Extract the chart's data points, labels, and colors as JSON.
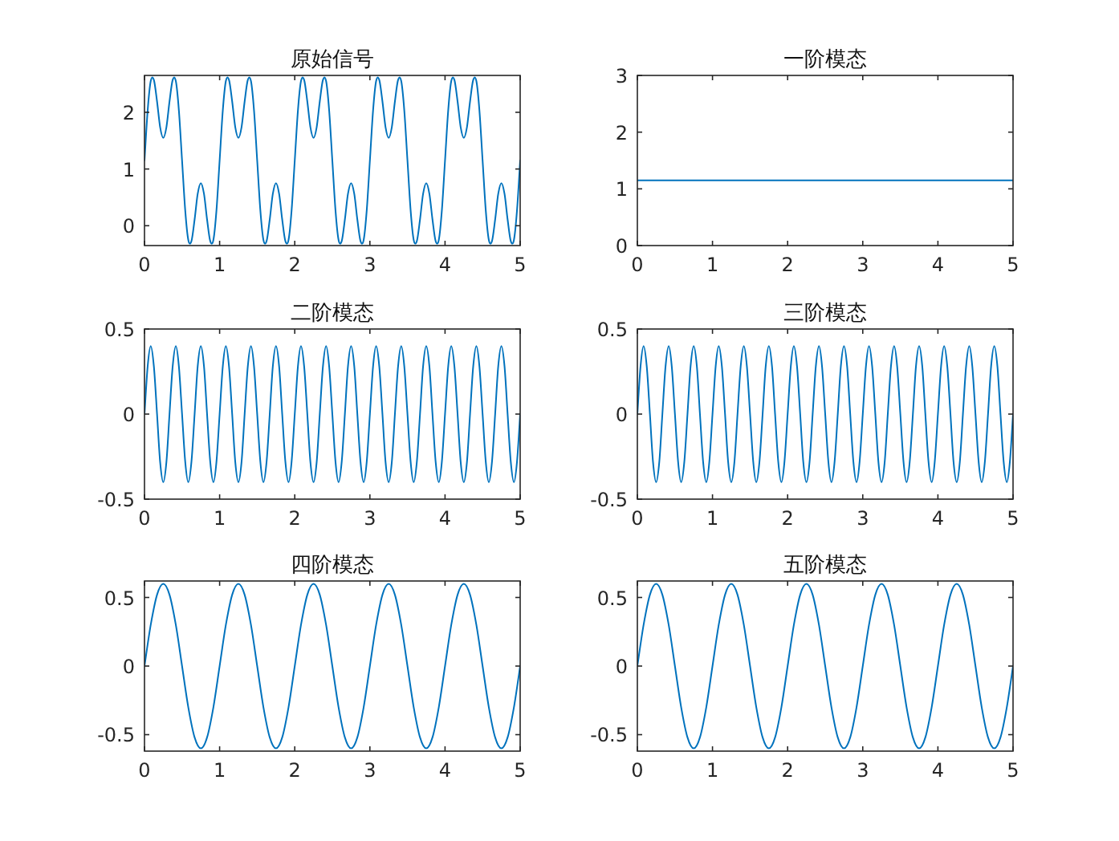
{
  "chart_data": [
    {
      "type": "line",
      "title": "原始信号",
      "color": "#0072bd",
      "xlim": [
        0,
        5
      ],
      "ylim": [
        -0.35,
        2.65
      ],
      "xticks": [
        0,
        1,
        2,
        3,
        4,
        5
      ],
      "yticks": [
        0,
        1,
        2
      ],
      "x": [
        0,
        0.042,
        0.083,
        0.125,
        0.167,
        0.208,
        0.25,
        0.292,
        0.333,
        0.375,
        0.417,
        0.458,
        0.5,
        0.542,
        0.583,
        0.625,
        0.667,
        0.708,
        0.75,
        0.792,
        0.833,
        0.875,
        0.917,
        0.958,
        1,
        1.042,
        1.083,
        1.125,
        1.167,
        1.208,
        1.25,
        1.292,
        1.333,
        1.375,
        1.417,
        1.458,
        1.5,
        1.542,
        1.583,
        1.625,
        1.667,
        1.708,
        1.75,
        1.792,
        1.833,
        1.875,
        1.917,
        1.958,
        2,
        2.042,
        2.083,
        2.125,
        2.167,
        2.208,
        2.25,
        2.292,
        2.333,
        2.375,
        2.417,
        2.458,
        2.5,
        2.542,
        2.583,
        2.625,
        2.667,
        2.708,
        2.75,
        2.792,
        2.833,
        2.875,
        2.917,
        2.958,
        3,
        3.042,
        3.083,
        3.125,
        3.167,
        3.208,
        3.25,
        3.292,
        3.333,
        3.375,
        3.417,
        3.458,
        3.5,
        3.542,
        3.583,
        3.625,
        3.667,
        3.708,
        3.75,
        3.792,
        3.833,
        3.875,
        3.917,
        3.958,
        4,
        4.042,
        4.083,
        4.125,
        4.167,
        4.208,
        4.25,
        4.292,
        4.333,
        4.375,
        4.417,
        4.458,
        4.5,
        4.542,
        4.583,
        4.625,
        4.667,
        4.708,
        4.75,
        4.792,
        4.833,
        4.875,
        4.917,
        4.958,
        5
      ],
      "values": [
        1.15,
        2.03,
        2.55,
        2.57,
        2.19,
        1.74,
        1.55,
        1.74,
        2.19,
        2.57,
        2.55,
        2.03,
        1.15,
        0.27,
        -0.25,
        -0.27,
        0.11,
        0.56,
        0.75,
        0.56,
        0.11,
        -0.27,
        -0.25,
        0.27,
        1.15,
        2.03,
        2.55,
        2.57,
        2.19,
        1.74,
        1.55,
        1.74,
        2.19,
        2.57,
        2.55,
        2.03,
        1.15,
        0.27,
        -0.25,
        -0.27,
        0.11,
        0.56,
        0.75,
        0.56,
        0.11,
        -0.27,
        -0.25,
        0.27,
        1.15,
        2.03,
        2.55,
        2.57,
        2.19,
        1.74,
        1.55,
        1.74,
        2.19,
        2.57,
        2.55,
        2.03,
        1.15,
        0.27,
        -0.25,
        -0.27,
        0.11,
        0.56,
        0.75,
        0.56,
        0.11,
        -0.27,
        -0.25,
        0.27,
        1.15,
        2.03,
        2.55,
        2.57,
        2.19,
        1.74,
        1.55,
        1.74,
        2.19,
        2.57,
        2.55,
        2.03,
        1.15,
        0.27,
        -0.25,
        -0.27,
        0.11,
        0.56,
        0.75,
        0.56,
        0.11,
        -0.27,
        -0.25,
        0.27,
        1.15,
        2.03,
        2.55,
        2.57,
        2.19,
        1.74,
        1.55,
        1.74,
        2.19,
        2.57,
        2.55,
        2.03,
        1.15,
        0.27,
        -0.25,
        -0.27,
        0.11,
        0.56,
        0.75,
        0.56,
        0.11,
        -0.27,
        -0.25,
        0.27,
        1.15
      ]
    },
    {
      "type": "line",
      "title": "一阶模态",
      "color": "#0072bd",
      "xlim": [
        0,
        5
      ],
      "ylim": [
        0,
        3
      ],
      "xticks": [
        0,
        1,
        2,
        3,
        4,
        5
      ],
      "yticks": [
        0,
        1,
        2,
        3
      ],
      "x": [
        0,
        5
      ],
      "values": [
        1.15,
        1.15
      ]
    },
    {
      "type": "line",
      "title": "二阶模态",
      "color": "#0072bd",
      "xlim": [
        0,
        5
      ],
      "ylim": [
        -0.5,
        0.5
      ],
      "xticks": [
        0,
        1,
        2,
        3,
        4,
        5
      ],
      "yticks": [
        -0.5,
        0,
        0.5
      ],
      "x": [
        0,
        0.042,
        0.083,
        0.125,
        0.167,
        0.208,
        0.25,
        0.292,
        0.333,
        0.375,
        0.417,
        0.458,
        0.5,
        0.542,
        0.583,
        0.625,
        0.667,
        0.708,
        0.75,
        0.792,
        0.833,
        0.875,
        0.917,
        0.958,
        1,
        1.042,
        1.083,
        1.125,
        1.167,
        1.208,
        1.25,
        1.292,
        1.333,
        1.375,
        1.417,
        1.458,
        1.5,
        1.542,
        1.583,
        1.625,
        1.667,
        1.708,
        1.75,
        1.792,
        1.833,
        1.875,
        1.917,
        1.958,
        2,
        2.042,
        2.083,
        2.125,
        2.167,
        2.208,
        2.25,
        2.292,
        2.333,
        2.375,
        2.417,
        2.458,
        2.5,
        2.542,
        2.583,
        2.625,
        2.667,
        2.708,
        2.75,
        2.792,
        2.833,
        2.875,
        2.917,
        2.958,
        3,
        3.042,
        3.083,
        3.125,
        3.167,
        3.208,
        3.25,
        3.292,
        3.333,
        3.375,
        3.417,
        3.458,
        3.5,
        3.542,
        3.583,
        3.625,
        3.667,
        3.708,
        3.75,
        3.792,
        3.833,
        3.875,
        3.917,
        3.958,
        4,
        4.042,
        4.083,
        4.125,
        4.167,
        4.208,
        4.25,
        4.292,
        4.333,
        4.375,
        4.417,
        4.458,
        4.5,
        4.542,
        4.583,
        4.625,
        4.667,
        4.708,
        4.75,
        4.792,
        4.833,
        4.875,
        4.917,
        4.958,
        5
      ],
      "values": [
        0,
        0.28,
        0.4,
        0.28,
        0,
        -0.28,
        -0.4,
        -0.28,
        0,
        0.28,
        0.4,
        0.28,
        0,
        -0.28,
        -0.4,
        -0.28,
        0,
        0.28,
        0.4,
        0.28,
        0,
        -0.28,
        -0.4,
        -0.28,
        0,
        0.28,
        0.4,
        0.28,
        0,
        -0.28,
        -0.4,
        -0.28,
        0,
        0.28,
        0.4,
        0.28,
        0,
        -0.28,
        -0.4,
        -0.28,
        0,
        0.28,
        0.4,
        0.28,
        0,
        -0.28,
        -0.4,
        -0.28,
        0,
        0.28,
        0.4,
        0.28,
        0,
        -0.28,
        -0.4,
        -0.28,
        0,
        0.28,
        0.4,
        0.28,
        0,
        -0.28,
        -0.4,
        -0.28,
        0,
        0.28,
        0.4,
        0.28,
        0,
        -0.28,
        -0.4,
        -0.28,
        0,
        0.28,
        0.4,
        0.28,
        0,
        -0.28,
        -0.4,
        -0.28,
        0,
        0.28,
        0.4,
        0.28,
        0,
        -0.28,
        -0.4,
        -0.28,
        0,
        0.28,
        0.4,
        0.28,
        0,
        -0.28,
        -0.4,
        -0.28,
        0,
        0.28,
        0.4,
        0.28,
        0,
        -0.28,
        -0.4,
        -0.28,
        0,
        0.28,
        0.4,
        0.28,
        0,
        -0.28,
        -0.4,
        -0.28,
        0,
        0.28,
        0.4,
        0.28,
        0,
        -0.28,
        -0.4,
        -0.28,
        0
      ]
    },
    {
      "type": "line",
      "title": "三阶模态",
      "color": "#0072bd",
      "xlim": [
        0,
        5
      ],
      "ylim": [
        -0.5,
        0.5
      ],
      "xticks": [
        0,
        1,
        2,
        3,
        4,
        5
      ],
      "yticks": [
        -0.5,
        0,
        0.5
      ],
      "x": [
        0,
        0.042,
        0.083,
        0.125,
        0.167,
        0.208,
        0.25,
        0.292,
        0.333,
        0.375,
        0.417,
        0.458,
        0.5,
        0.542,
        0.583,
        0.625,
        0.667,
        0.708,
        0.75,
        0.792,
        0.833,
        0.875,
        0.917,
        0.958,
        1,
        1.042,
        1.083,
        1.125,
        1.167,
        1.208,
        1.25,
        1.292,
        1.333,
        1.375,
        1.417,
        1.458,
        1.5,
        1.542,
        1.583,
        1.625,
        1.667,
        1.708,
        1.75,
        1.792,
        1.833,
        1.875,
        1.917,
        1.958,
        2,
        2.042,
        2.083,
        2.125,
        2.167,
        2.208,
        2.25,
        2.292,
        2.333,
        2.375,
        2.417,
        2.458,
        2.5,
        2.542,
        2.583,
        2.625,
        2.667,
        2.708,
        2.75,
        2.792,
        2.833,
        2.875,
        2.917,
        2.958,
        3,
        3.042,
        3.083,
        3.125,
        3.167,
        3.208,
        3.25,
        3.292,
        3.333,
        3.375,
        3.417,
        3.458,
        3.5,
        3.542,
        3.583,
        3.625,
        3.667,
        3.708,
        3.75,
        3.792,
        3.833,
        3.875,
        3.917,
        3.958,
        4,
        4.042,
        4.083,
        4.125,
        4.167,
        4.208,
        4.25,
        4.292,
        4.333,
        4.375,
        4.417,
        4.458,
        4.5,
        4.542,
        4.583,
        4.625,
        4.667,
        4.708,
        4.75,
        4.792,
        4.833,
        4.875,
        4.917,
        4.958,
        5
      ],
      "values": [
        0,
        0.28,
        0.4,
        0.28,
        0,
        -0.28,
        -0.4,
        -0.28,
        0,
        0.28,
        0.4,
        0.28,
        0,
        -0.28,
        -0.4,
        -0.28,
        0,
        0.28,
        0.4,
        0.28,
        0,
        -0.28,
        -0.4,
        -0.28,
        0,
        0.28,
        0.4,
        0.28,
        0,
        -0.28,
        -0.4,
        -0.28,
        0,
        0.28,
        0.4,
        0.28,
        0,
        -0.28,
        -0.4,
        -0.28,
        0,
        0.28,
        0.4,
        0.28,
        0,
        -0.28,
        -0.4,
        -0.28,
        0,
        0.28,
        0.4,
        0.28,
        0,
        -0.28,
        -0.4,
        -0.28,
        0,
        0.28,
        0.4,
        0.28,
        0,
        -0.28,
        -0.4,
        -0.28,
        0,
        0.28,
        0.4,
        0.28,
        0,
        -0.28,
        -0.4,
        -0.28,
        0,
        0.28,
        0.4,
        0.28,
        0,
        -0.28,
        -0.4,
        -0.28,
        0,
        0.28,
        0.4,
        0.28,
        0,
        -0.28,
        -0.4,
        -0.28,
        0,
        0.28,
        0.4,
        0.28,
        0,
        -0.28,
        -0.4,
        -0.28,
        0,
        0.28,
        0.4,
        0.28,
        0,
        -0.28,
        -0.4,
        -0.28,
        0,
        0.28,
        0.4,
        0.28,
        0,
        -0.28,
        -0.4,
        -0.28,
        0,
        0.28,
        0.4,
        0.28,
        0,
        -0.28,
        -0.4,
        -0.28,
        0
      ]
    },
    {
      "type": "line",
      "title": "四阶模态",
      "color": "#0072bd",
      "xlim": [
        0,
        5
      ],
      "ylim": [
        -0.62,
        0.62
      ],
      "xticks": [
        0,
        1,
        2,
        3,
        4,
        5
      ],
      "yticks": [
        -0.5,
        0,
        0.5
      ],
      "x": [
        0,
        0.083,
        0.167,
        0.25,
        0.333,
        0.417,
        0.5,
        0.583,
        0.667,
        0.75,
        0.833,
        0.917,
        1,
        1.083,
        1.167,
        1.25,
        1.333,
        1.417,
        1.5,
        1.583,
        1.667,
        1.75,
        1.833,
        1.917,
        2,
        2.083,
        2.167,
        2.25,
        2.333,
        2.417,
        2.5,
        2.583,
        2.667,
        2.75,
        2.833,
        2.917,
        3,
        3.083,
        3.167,
        3.25,
        3.333,
        3.417,
        3.5,
        3.583,
        3.667,
        3.75,
        3.833,
        3.917,
        4,
        4.083,
        4.167,
        4.25,
        4.333,
        4.417,
        4.5,
        4.583,
        4.667,
        4.75,
        4.833,
        4.917,
        5
      ],
      "values": [
        0,
        0.3,
        0.52,
        0.6,
        0.52,
        0.3,
        0,
        -0.3,
        -0.52,
        -0.6,
        -0.52,
        -0.3,
        0,
        0.3,
        0.52,
        0.6,
        0.52,
        0.3,
        0,
        -0.3,
        -0.52,
        -0.6,
        -0.52,
        -0.3,
        0,
        0.3,
        0.52,
        0.6,
        0.52,
        0.3,
        0,
        -0.3,
        -0.52,
        -0.6,
        -0.52,
        -0.3,
        0,
        0.3,
        0.52,
        0.6,
        0.52,
        0.3,
        0,
        -0.3,
        -0.52,
        -0.6,
        -0.52,
        -0.3,
        0,
        0.3,
        0.52,
        0.6,
        0.52,
        0.3,
        0,
        -0.3,
        -0.52,
        -0.6,
        -0.52,
        -0.3,
        0
      ]
    },
    {
      "type": "line",
      "title": "五阶模态",
      "color": "#0072bd",
      "xlim": [
        0,
        5
      ],
      "ylim": [
        -0.62,
        0.62
      ],
      "xticks": [
        0,
        1,
        2,
        3,
        4,
        5
      ],
      "yticks": [
        -0.5,
        0,
        0.5
      ],
      "x": [
        0,
        0.083,
        0.167,
        0.25,
        0.333,
        0.417,
        0.5,
        0.583,
        0.667,
        0.75,
        0.833,
        0.917,
        1,
        1.083,
        1.167,
        1.25,
        1.333,
        1.417,
        1.5,
        1.583,
        1.667,
        1.75,
        1.833,
        1.917,
        2,
        2.083,
        2.167,
        2.25,
        2.333,
        2.417,
        2.5,
        2.583,
        2.667,
        2.75,
        2.833,
        2.917,
        3,
        3.083,
        3.167,
        3.25,
        3.333,
        3.417,
        3.5,
        3.583,
        3.667,
        3.75,
        3.833,
        3.917,
        4,
        4.083,
        4.167,
        4.25,
        4.333,
        4.417,
        4.5,
        4.583,
        4.667,
        4.75,
        4.833,
        4.917,
        5
      ],
      "values": [
        0,
        0.3,
        0.52,
        0.6,
        0.52,
        0.3,
        0,
        -0.3,
        -0.52,
        -0.6,
        -0.52,
        -0.3,
        0,
        0.3,
        0.52,
        0.6,
        0.52,
        0.3,
        0,
        -0.3,
        -0.52,
        -0.6,
        -0.52,
        -0.3,
        0,
        0.3,
        0.52,
        0.6,
        0.52,
        0.3,
        0,
        -0.3,
        -0.52,
        -0.6,
        -0.52,
        -0.3,
        0,
        0.3,
        0.52,
        0.6,
        0.52,
        0.3,
        0,
        -0.3,
        -0.52,
        -0.6,
        -0.52,
        -0.3,
        0,
        0.3,
        0.52,
        0.6,
        0.52,
        0.3,
        0,
        -0.3,
        -0.52,
        -0.6,
        -0.52,
        -0.3,
        0
      ]
    }
  ]
}
